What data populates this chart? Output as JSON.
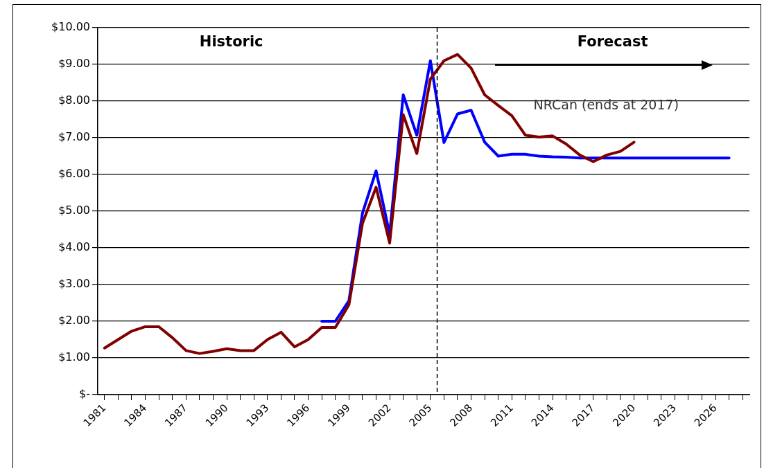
{
  "chart_data": {
    "type": "line",
    "x": [
      1981,
      1982,
      1983,
      1984,
      1985,
      1986,
      1987,
      1988,
      1989,
      1990,
      1991,
      1992,
      1993,
      1994,
      1995,
      1996,
      1997,
      1998,
      1999,
      2000,
      2001,
      2002,
      2003,
      2004,
      2005,
      2006,
      2007,
      2008,
      2009,
      2010,
      2011,
      2012,
      2013,
      2014,
      2015,
      2016,
      2017,
      2018,
      2019,
      2020,
      2021,
      2022,
      2023,
      2024,
      2025,
      2026,
      2027
    ],
    "series": [
      {
        "name": "NRCan (ends at 2017)",
        "color": "#800000",
        "values": [
          1.27,
          1.5,
          1.73,
          1.85,
          1.85,
          1.55,
          1.2,
          1.12,
          1.18,
          1.25,
          1.2,
          1.2,
          1.5,
          1.7,
          1.3,
          1.5,
          1.83,
          1.83,
          2.45,
          4.67,
          5.65,
          4.13,
          7.63,
          6.57,
          8.6,
          9.1,
          9.27,
          8.9,
          8.17,
          7.88,
          7.6,
          7.07,
          7.02,
          7.05,
          6.83,
          6.53,
          6.35,
          6.53,
          6.63,
          6.88,
          null,
          null,
          null,
          null,
          null,
          null,
          null
        ]
      },
      {
        "color": "#0000ff",
        "values": [
          null,
          null,
          null,
          null,
          null,
          null,
          null,
          null,
          null,
          null,
          null,
          null,
          null,
          null,
          null,
          null,
          2.0,
          2.0,
          2.56,
          4.95,
          6.1,
          4.37,
          8.17,
          7.07,
          9.1,
          6.87,
          7.65,
          7.75,
          6.88,
          6.5,
          6.55,
          6.55,
          6.5,
          6.48,
          6.47,
          6.45,
          6.45,
          6.45,
          6.45,
          6.45,
          6.45,
          6.45,
          6.45,
          6.45,
          6.45,
          6.45,
          6.45
        ]
      }
    ],
    "xlim": [
      1980.5,
      2028.5
    ],
    "xticks": [
      1981,
      {
        "value": 1982,
        "label": null
      },
      {
        "value": 1983,
        "label": null
      },
      1984,
      {
        "value": 1985,
        "label": null
      },
      {
        "value": 1986,
        "label": null
      },
      1987,
      {
        "value": 1988,
        "label": null
      },
      {
        "value": 1989,
        "label": null
      },
      1990,
      {
        "value": 1991,
        "label": null
      },
      {
        "value": 1992,
        "label": null
      },
      1993,
      {
        "value": 1994,
        "label": null
      },
      {
        "value": 1995,
        "label": null
      },
      1996,
      {
        "value": 1997,
        "label": null
      },
      {
        "value": 1998,
        "label": null
      },
      1999,
      {
        "value": 2000,
        "label": null
      },
      {
        "value": 2001,
        "label": null
      },
      2002,
      {
        "value": 2003,
        "label": null
      },
      {
        "value": 2004,
        "label": null
      },
      2005,
      {
        "value": 2006,
        "label": null
      },
      {
        "value": 2007,
        "label": null
      },
      2008,
      {
        "value": 2009,
        "label": null
      },
      {
        "value": 2010,
        "label": null
      },
      2011,
      {
        "value": 2012,
        "label": null
      },
      {
        "value": 2013,
        "label": null
      },
      2014,
      {
        "value": 2015,
        "label": null
      },
      {
        "value": 2016,
        "label": null
      },
      2017,
      {
        "value": 2018,
        "label": null
      },
      {
        "value": 2019,
        "label": null
      },
      2020,
      {
        "value": 2021,
        "label": null
      },
      {
        "value": 2022,
        "label": null
      },
      2023,
      {
        "value": 2024,
        "label": null
      },
      {
        "value": 2025,
        "label": null
      },
      2026,
      {
        "value": 2027,
        "label": null
      },
      {
        "value": 2028,
        "label": null
      }
    ],
    "ylim": [
      0,
      10
    ],
    "yticks": [
      {
        "value": 0,
        "label": "$-"
      },
      {
        "value": 1,
        "label": "$1.00"
      },
      {
        "value": 2,
        "label": "$2.00"
      },
      {
        "value": 3,
        "label": "$3.00"
      },
      {
        "value": 4,
        "label": "$4.00"
      },
      {
        "value": 5,
        "label": "$5.00"
      },
      {
        "value": 6,
        "label": "$6.00"
      },
      {
        "value": 7,
        "label": "$7.00"
      },
      {
        "value": 8,
        "label": "$8.00"
      },
      {
        "value": 9,
        "label": "$9.00"
      },
      {
        "value": 10,
        "label": "$10.00"
      }
    ],
    "grid": "y",
    "legend": false,
    "marker": "none",
    "line_style": "solid",
    "ref_lines": [
      {
        "axis": "x",
        "value": 2005.5,
        "color": "#000000",
        "line_style": "dashed"
      }
    ],
    "annotations": [
      "Historic",
      "Forecast"
    ]
  }
}
